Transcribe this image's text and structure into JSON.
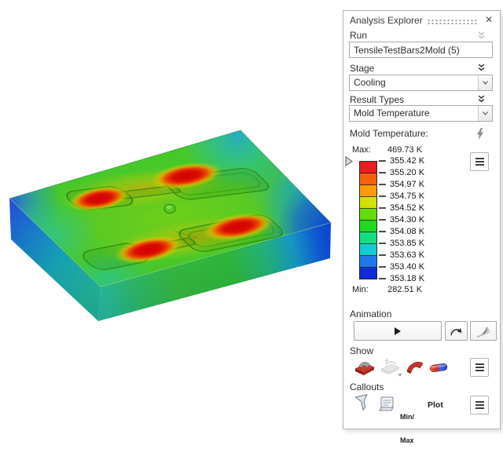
{
  "panel": {
    "title": "Analysis Explorer",
    "close_glyph": "✕",
    "run": {
      "label": "Run",
      "value": "TensileTestBars2Mold (5)"
    },
    "stage": {
      "label": "Stage",
      "value": "Cooling"
    },
    "result_types": {
      "label": "Result Types",
      "value": "Mold Temperature"
    },
    "legend": {
      "title": "Mold Temperature:",
      "max_label": "Max:",
      "max_value": "469.73 K",
      "min_label": "Min:",
      "min_value": "282.51 K",
      "tick_values": [
        "355.42 K",
        "355.20 K",
        "354.97 K",
        "354.75 K",
        "354.52 K",
        "354.30 K",
        "354.08 K",
        "353.85 K",
        "353.63 K",
        "353.40 K",
        "353.18 K"
      ],
      "band_colors": [
        "#ec1c24",
        "#f4610b",
        "#ff9d00",
        "#d2e005",
        "#62dd05",
        "#21d81f",
        "#16dd81",
        "#12ccd2",
        "#1e78e8",
        "#0f2cd8"
      ]
    },
    "animation": {
      "label": "Animation"
    },
    "show": {
      "label": "Show"
    },
    "callouts": {
      "label": "Callouts",
      "minmax_line1": "Min/",
      "minmax_line2": "Max",
      "plot_label": "Plot"
    }
  },
  "viewport": {
    "plot": "Mold Temperature",
    "hot_spot_count": 4,
    "cavity_count": 2,
    "surface_base_color": "#47c829",
    "hot_spot_color": "#d20000",
    "cool_edge_color": "#0c40d0"
  }
}
